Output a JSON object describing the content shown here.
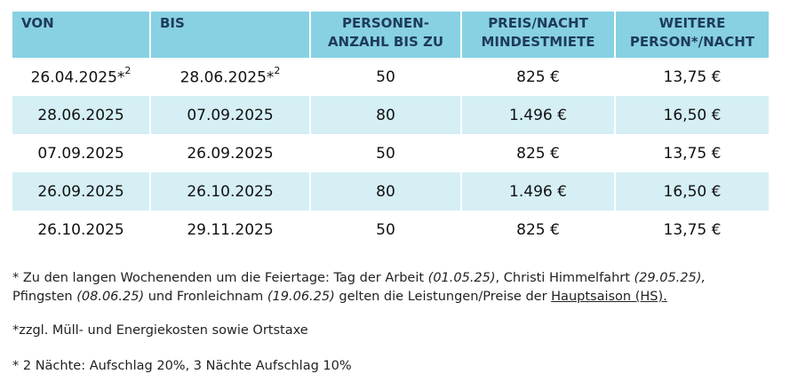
{
  "table": {
    "headers": {
      "von": "VON",
      "bis": "BIS",
      "personen_l1": "PERSONEN-",
      "personen_l2": "ANZAHL BIS ZU",
      "preis_l1": "PREIS/NACHT",
      "preis_l2": "MINDESTMIETE",
      "weitere_l1": "WEITERE",
      "weitere_l2": "PERSON*/NACHT"
    },
    "rows": [
      {
        "von": "26.04.2025*",
        "von_sup": "2",
        "bis": "28.06.2025*",
        "bis_sup": "2",
        "personen": "50",
        "preis": "825 €",
        "weitere": "13,75 €"
      },
      {
        "von": "28.06.2025",
        "von_sup": "",
        "bis": "07.09.2025",
        "bis_sup": "",
        "personen": "80",
        "preis": "1.496 €",
        "weitere": "16,50 €"
      },
      {
        "von": "07.09.2025",
        "von_sup": "",
        "bis": "26.09.2025",
        "bis_sup": "",
        "personen": "50",
        "preis": "825 €",
        "weitere": "13,75 €"
      },
      {
        "von": "26.09.2025",
        "von_sup": "",
        "bis": "26.10.2025",
        "bis_sup": "",
        "personen": "80",
        "preis": "1.496 €",
        "weitere": "16,50 €"
      },
      {
        "von": "26.10.2025",
        "von_sup": "",
        "bis": "29.11.2025",
        "bis_sup": "",
        "personen": "50",
        "preis": "825 €",
        "weitere": "13,75 €"
      }
    ]
  },
  "notes": {
    "n1_a": "* Zu den langen Wochenenden um die Feiertage: Tag der Arbeit ",
    "n1_d1": "(01.05.25)",
    "n1_b": ", Christi Himmelfahrt ",
    "n1_d2": "(29.05.25),",
    "n1_c": "Pfingsten ",
    "n1_d3": "(08.06.25)",
    "n1_e": " und Fronleichnam ",
    "n1_d4": "(19.06.25)",
    "n1_f": " gelten die Leistungen/Preise der ",
    "n1_link": "Hauptsaison (HS)",
    "n1_g": ".",
    "n2": "*zzgl. Müll- und Energiekosten sowie Ortstaxe",
    "n3": "* 2 Nächte: Aufschlag 20%, 3 Nächte Aufschlag 10%"
  }
}
